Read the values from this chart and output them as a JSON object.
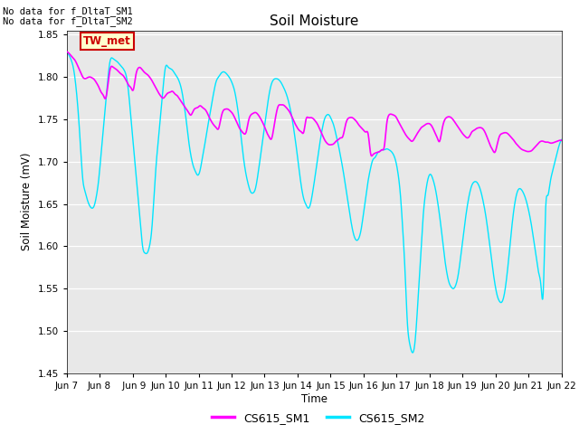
{
  "title": "Soil Moisture",
  "ylabel": "Soil Moisture (mV)",
  "xlabel": "Time",
  "ylim": [
    1.45,
    1.855
  ],
  "yticks": [
    1.45,
    1.5,
    1.55,
    1.6,
    1.65,
    1.7,
    1.75,
    1.8,
    1.85
  ],
  "xtick_labels": [
    "Jun 7",
    "Jun 8",
    " Jun 9",
    "Jun 10",
    "Jun 11",
    "Jun 12",
    "Jun 13",
    "Jun 14",
    "Jun 15",
    "Jun 16",
    "Jun 17",
    "Jun 18",
    "Jun 19",
    "Jun 20",
    "Jun 21",
    "Jun 22"
  ],
  "bg_color": "#e8e8e8",
  "fig_color": "#ffffff",
  "line1_color": "#ff00ff",
  "line2_color": "#00e5ff",
  "no_data_text1": "No data for f_DltaT_SM1",
  "no_data_text2": "No data for f_DltaT_SM2",
  "tw_met_label": "TW_met",
  "legend1_label": "CS615_SM1",
  "legend2_label": "CS615_SM2",
  "tw_met_bg": "#ffffcc",
  "tw_met_border": "#cc0000",
  "tw_met_text_color": "#cc0000",
  "sm1_data": [
    1.83,
    1.828,
    1.825,
    1.822,
    1.818,
    1.812,
    1.806,
    1.8,
    1.798,
    1.799,
    1.8,
    1.799,
    1.797,
    1.793,
    1.788,
    1.782,
    1.778,
    1.775,
    1.792,
    1.81,
    1.812,
    1.81,
    1.808,
    1.805,
    1.803,
    1.8,
    1.795,
    1.79,
    1.787,
    1.785,
    1.801,
    1.81,
    1.811,
    1.808,
    1.805,
    1.803,
    1.8,
    1.796,
    1.791,
    1.786,
    1.781,
    1.777,
    1.775,
    1.778,
    1.781,
    1.782,
    1.783,
    1.78,
    1.778,
    1.774,
    1.77,
    1.766,
    1.762,
    1.758,
    1.755,
    1.76,
    1.763,
    1.764,
    1.766,
    1.764,
    1.762,
    1.758,
    1.752,
    1.747,
    1.743,
    1.74,
    1.739,
    1.751,
    1.76,
    1.762,
    1.762,
    1.76,
    1.757,
    1.752,
    1.746,
    1.74,
    1.736,
    1.733,
    1.735,
    1.748,
    1.755,
    1.757,
    1.758,
    1.756,
    1.752,
    1.747,
    1.741,
    1.734,
    1.729,
    1.727,
    1.74,
    1.756,
    1.766,
    1.767,
    1.767,
    1.765,
    1.762,
    1.758,
    1.752,
    1.746,
    1.741,
    1.737,
    1.735,
    1.735,
    1.75,
    1.752,
    1.752,
    1.751,
    1.748,
    1.744,
    1.738,
    1.732,
    1.726,
    1.722,
    1.72,
    1.72,
    1.721,
    1.724,
    1.726,
    1.728,
    1.73,
    1.742,
    1.75,
    1.752,
    1.752,
    1.75,
    1.747,
    1.743,
    1.74,
    1.737,
    1.735,
    1.732,
    1.71,
    1.708,
    1.71,
    1.711,
    1.712,
    1.714,
    1.718,
    1.744,
    1.755,
    1.756,
    1.755,
    1.753,
    1.748,
    1.743,
    1.738,
    1.733,
    1.729,
    1.726,
    1.724,
    1.727,
    1.732,
    1.736,
    1.74,
    1.742,
    1.744,
    1.745,
    1.744,
    1.74,
    1.734,
    1.728,
    1.724,
    1.737,
    1.748,
    1.752,
    1.753,
    1.752,
    1.749,
    1.745,
    1.741,
    1.737,
    1.733,
    1.73,
    1.728,
    1.73,
    1.735,
    1.737,
    1.739,
    1.74,
    1.74,
    1.738,
    1.733,
    1.726,
    1.719,
    1.714,
    1.711,
    1.72,
    1.73,
    1.733,
    1.734,
    1.734,
    1.732,
    1.729,
    1.726,
    1.722,
    1.719,
    1.716,
    1.714,
    1.713,
    1.712,
    1.712,
    1.713,
    1.716,
    1.719,
    1.722,
    1.724,
    1.724,
    1.723,
    1.723,
    1.722,
    1.722,
    1.723,
    1.724,
    1.725,
    1.725
  ],
  "sm2_data": [
    1.828,
    1.826,
    1.82,
    1.81,
    1.79,
    1.76,
    1.72,
    1.68,
    1.665,
    1.655,
    1.648,
    1.645,
    1.648,
    1.66,
    1.68,
    1.71,
    1.74,
    1.77,
    1.8,
    1.82,
    1.822,
    1.82,
    1.818,
    1.815,
    1.812,
    1.808,
    1.8,
    1.78,
    1.75,
    1.72,
    1.69,
    1.66,
    1.63,
    1.6,
    1.592,
    1.592,
    1.6,
    1.62,
    1.66,
    1.7,
    1.73,
    1.76,
    1.79,
    1.812,
    1.812,
    1.81,
    1.808,
    1.804,
    1.8,
    1.794,
    1.784,
    1.768,
    1.748,
    1.725,
    1.707,
    1.695,
    1.688,
    1.684,
    1.69,
    1.705,
    1.72,
    1.737,
    1.752,
    1.768,
    1.783,
    1.795,
    1.8,
    1.804,
    1.806,
    1.805,
    1.802,
    1.798,
    1.792,
    1.783,
    1.768,
    1.748,
    1.724,
    1.701,
    1.684,
    1.672,
    1.664,
    1.663,
    1.668,
    1.683,
    1.702,
    1.722,
    1.742,
    1.762,
    1.78,
    1.792,
    1.797,
    1.798,
    1.797,
    1.794,
    1.789,
    1.783,
    1.775,
    1.764,
    1.75,
    1.732,
    1.712,
    1.69,
    1.67,
    1.656,
    1.649,
    1.645,
    1.651,
    1.666,
    1.684,
    1.703,
    1.722,
    1.738,
    1.75,
    1.755,
    1.755,
    1.75,
    1.743,
    1.732,
    1.72,
    1.706,
    1.691,
    1.674,
    1.656,
    1.638,
    1.622,
    1.611,
    1.607,
    1.61,
    1.621,
    1.64,
    1.66,
    1.678,
    1.692,
    1.702,
    1.705,
    1.71,
    1.712,
    1.714,
    1.714,
    1.715,
    1.714,
    1.712,
    1.708,
    1.7,
    1.685,
    1.66,
    1.62,
    1.57,
    1.51,
    1.485,
    1.475,
    1.48,
    1.51,
    1.555,
    1.6,
    1.64,
    1.665,
    1.68,
    1.685,
    1.68,
    1.67,
    1.655,
    1.636,
    1.614,
    1.59,
    1.571,
    1.558,
    1.552,
    1.55,
    1.554,
    1.565,
    1.584,
    1.606,
    1.628,
    1.647,
    1.662,
    1.672,
    1.676,
    1.676,
    1.672,
    1.664,
    1.652,
    1.637,
    1.618,
    1.597,
    1.575,
    1.556,
    1.542,
    1.535,
    1.534,
    1.542,
    1.56,
    1.585,
    1.613,
    1.638,
    1.656,
    1.666,
    1.668,
    1.665,
    1.659,
    1.65,
    1.638,
    1.623,
    1.605,
    1.587,
    1.569,
    1.554,
    1.545,
    1.641,
    1.66,
    1.675,
    1.688,
    1.699,
    1.71,
    1.72,
    1.726
  ]
}
